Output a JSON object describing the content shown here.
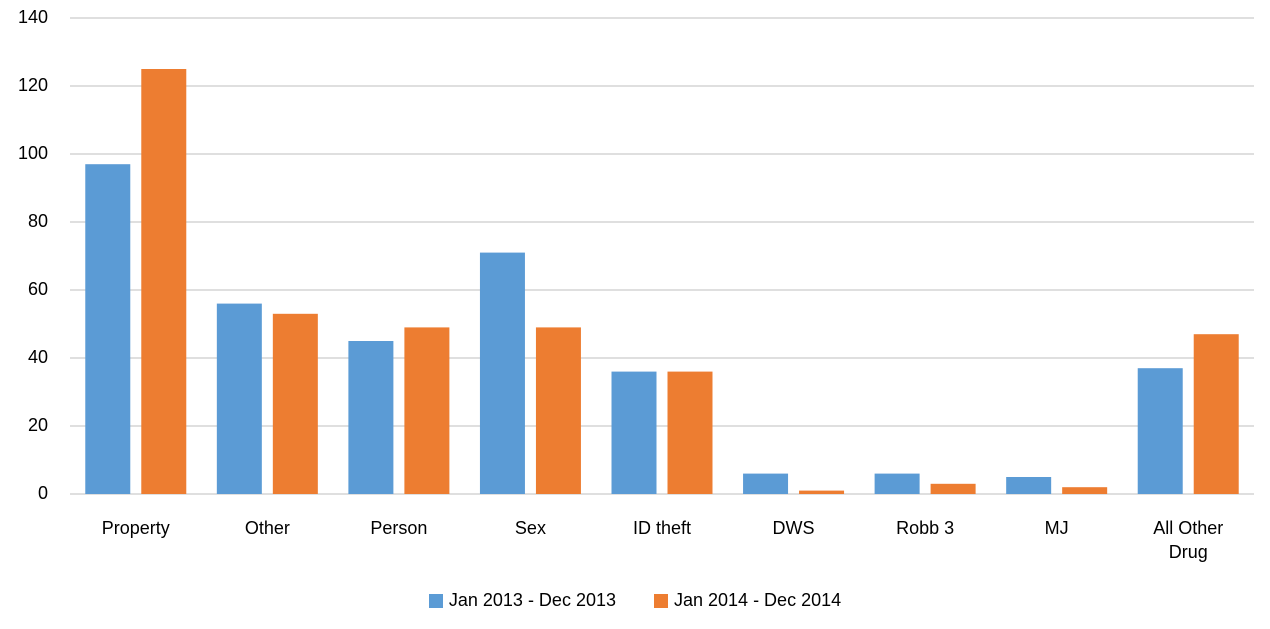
{
  "chart_data": {
    "type": "bar",
    "categories": [
      "Property",
      "Other",
      "Person",
      "Sex",
      "ID theft",
      "DWS",
      "Robb 3",
      "MJ",
      "All Other Drug"
    ],
    "series": [
      {
        "name": "Jan 2013 - Dec 2013",
        "color": "#5b9bd5",
        "values": [
          97,
          56,
          45,
          71,
          36,
          6,
          6,
          5,
          37
        ]
      },
      {
        "name": "Jan 2014 - Dec 2014",
        "color": "#ed7d31",
        "values": [
          125,
          53,
          49,
          49,
          36,
          1,
          3,
          2,
          47
        ]
      }
    ],
    "ylim": [
      0,
      140
    ],
    "yticks": [
      0,
      20,
      40,
      60,
      80,
      100,
      120,
      140
    ],
    "grid": true,
    "legend": "bottom"
  }
}
